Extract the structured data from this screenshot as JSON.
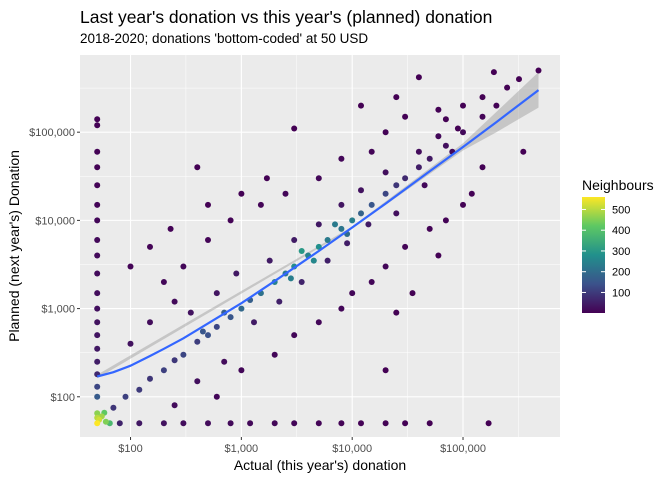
{
  "chart_data": {
    "type": "scatter",
    "title": "Last year's donation vs this year's (planned) donation",
    "subtitle": "2018-2020; donations 'bottom-coded' at 50 USD",
    "xlabel": "Actual (this year's) donation",
    "ylabel": "Planned (next year's) Donation",
    "x_scale": "log10",
    "y_scale": "log10",
    "xlim": [
      35,
      750000
    ],
    "ylim": [
      35,
      750000
    ],
    "x_ticks": [
      {
        "value": 100,
        "label": "$100"
      },
      {
        "value": 1000,
        "label": "$1,000"
      },
      {
        "value": 10000,
        "label": "$10,000"
      },
      {
        "value": 100000,
        "label": "$100,000"
      }
    ],
    "y_ticks": [
      {
        "value": 100,
        "label": "$100"
      },
      {
        "value": 1000,
        "label": "$1,000"
      },
      {
        "value": 10000,
        "label": "$10,000"
      },
      {
        "value": 100000,
        "label": "$100,000"
      }
    ],
    "grid": true,
    "legend": {
      "title": "Neighbours",
      "placement": "right",
      "min": 1,
      "max": 560,
      "ticks": [
        100,
        200,
        300,
        400,
        500
      ],
      "colormap": "viridis"
    },
    "trend": {
      "name": "smoothed fit",
      "color": "#3366FF",
      "points": [
        {
          "x": 50,
          "y": 170
        },
        {
          "x": 70,
          "y": 190
        },
        {
          "x": 100,
          "y": 225
        },
        {
          "x": 150,
          "y": 290
        },
        {
          "x": 200,
          "y": 350
        },
        {
          "x": 300,
          "y": 460
        },
        {
          "x": 500,
          "y": 680
        },
        {
          "x": 1000,
          "y": 1150
        },
        {
          "x": 2000,
          "y": 2050
        },
        {
          "x": 5000,
          "y": 4500
        },
        {
          "x": 10000,
          "y": 8300
        },
        {
          "x": 20000,
          "y": 15500
        },
        {
          "x": 50000,
          "y": 36000
        },
        {
          "x": 100000,
          "y": 68000
        },
        {
          "x": 200000,
          "y": 130000
        },
        {
          "x": 480000,
          "y": 300000
        }
      ],
      "band_upper": [
        {
          "x": 50,
          "y": 178
        },
        {
          "x": 10000,
          "y": 8500
        },
        {
          "x": 100000,
          "y": 75000
        },
        {
          "x": 200000,
          "y": 170000
        },
        {
          "x": 480000,
          "y": 480000
        }
      ],
      "band_lower": [
        {
          "x": 50,
          "y": 162
        },
        {
          "x": 10000,
          "y": 8100
        },
        {
          "x": 100000,
          "y": 62000
        },
        {
          "x": 200000,
          "y": 100000
        },
        {
          "x": 480000,
          "y": 190000
        }
      ]
    },
    "series": [
      {
        "name": "bottom-coded cluster",
        "points": [
          {
            "x": 50,
            "y": 50,
            "n": 560
          },
          {
            "x": 52,
            "y": 55,
            "n": 520
          },
          {
            "x": 55,
            "y": 60,
            "n": 480
          },
          {
            "x": 60,
            "y": 52,
            "n": 450
          },
          {
            "x": 50,
            "y": 58,
            "n": 500
          },
          {
            "x": 58,
            "y": 66,
            "n": 420
          },
          {
            "x": 65,
            "y": 50,
            "n": 380
          },
          {
            "x": 50,
            "y": 65,
            "n": 460
          }
        ]
      },
      {
        "name": "vertical strip at x=50",
        "points": [
          {
            "x": 50,
            "y": 140000,
            "n": 3
          },
          {
            "x": 50,
            "y": 120000,
            "n": 3
          },
          {
            "x": 50,
            "y": 60000,
            "n": 4
          },
          {
            "x": 50,
            "y": 40000,
            "n": 4
          },
          {
            "x": 50,
            "y": 25000,
            "n": 6
          },
          {
            "x": 50,
            "y": 15000,
            "n": 8
          },
          {
            "x": 50,
            "y": 10000,
            "n": 12
          },
          {
            "x": 50,
            "y": 6000,
            "n": 14
          },
          {
            "x": 50,
            "y": 4000,
            "n": 16
          },
          {
            "x": 50,
            "y": 2500,
            "n": 18
          },
          {
            "x": 50,
            "y": 1500,
            "n": 22
          },
          {
            "x": 50,
            "y": 1000,
            "n": 26
          },
          {
            "x": 50,
            "y": 700,
            "n": 30
          },
          {
            "x": 50,
            "y": 500,
            "n": 34
          },
          {
            "x": 50,
            "y": 350,
            "n": 40
          },
          {
            "x": 50,
            "y": 250,
            "n": 50
          },
          {
            "x": 50,
            "y": 180,
            "n": 70
          },
          {
            "x": 50,
            "y": 130,
            "n": 120
          },
          {
            "x": 50,
            "y": 100,
            "n": 160
          }
        ]
      },
      {
        "name": "horizontal strip at y=50",
        "points": [
          {
            "x": 80,
            "y": 50,
            "n": 60
          },
          {
            "x": 120,
            "y": 50,
            "n": 40
          },
          {
            "x": 200,
            "y": 50,
            "n": 30
          },
          {
            "x": 300,
            "y": 50,
            "n": 24
          },
          {
            "x": 500,
            "y": 50,
            "n": 20
          },
          {
            "x": 800,
            "y": 50,
            "n": 16
          },
          {
            "x": 1200,
            "y": 50,
            "n": 14
          },
          {
            "x": 2000,
            "y": 50,
            "n": 12
          },
          {
            "x": 3000,
            "y": 50,
            "n": 10
          },
          {
            "x": 5000,
            "y": 50,
            "n": 8
          },
          {
            "x": 8000,
            "y": 50,
            "n": 6
          },
          {
            "x": 12000,
            "y": 50,
            "n": 5
          },
          {
            "x": 20000,
            "y": 50,
            "n": 4
          },
          {
            "x": 30000,
            "y": 50,
            "n": 3
          },
          {
            "x": 50000,
            "y": 50,
            "n": 2
          },
          {
            "x": 170000,
            "y": 50,
            "n": 1
          }
        ]
      },
      {
        "name": "main diagonal",
        "points": [
          {
            "x": 70,
            "y": 75,
            "n": 90
          },
          {
            "x": 90,
            "y": 100,
            "n": 110
          },
          {
            "x": 120,
            "y": 120,
            "n": 100
          },
          {
            "x": 150,
            "y": 160,
            "n": 90
          },
          {
            "x": 200,
            "y": 200,
            "n": 110
          },
          {
            "x": 250,
            "y": 260,
            "n": 95
          },
          {
            "x": 300,
            "y": 300,
            "n": 120
          },
          {
            "x": 400,
            "y": 420,
            "n": 105
          },
          {
            "x": 500,
            "y": 500,
            "n": 140
          },
          {
            "x": 600,
            "y": 620,
            "n": 120
          },
          {
            "x": 800,
            "y": 800,
            "n": 150
          },
          {
            "x": 1000,
            "y": 1000,
            "n": 190
          },
          {
            "x": 1200,
            "y": 1250,
            "n": 170
          },
          {
            "x": 1500,
            "y": 1500,
            "n": 210
          },
          {
            "x": 2000,
            "y": 2000,
            "n": 250
          },
          {
            "x": 2500,
            "y": 2500,
            "n": 230
          },
          {
            "x": 3000,
            "y": 3000,
            "n": 270
          },
          {
            "x": 4000,
            "y": 4000,
            "n": 250
          },
          {
            "x": 5000,
            "y": 5000,
            "n": 280
          },
          {
            "x": 6000,
            "y": 6000,
            "n": 230
          },
          {
            "x": 8000,
            "y": 8000,
            "n": 220
          },
          {
            "x": 10000,
            "y": 10000,
            "n": 240
          },
          {
            "x": 12000,
            "y": 12000,
            "n": 180
          },
          {
            "x": 15000,
            "y": 15000,
            "n": 150
          },
          {
            "x": 20000,
            "y": 20000,
            "n": 120
          },
          {
            "x": 25000,
            "y": 25000,
            "n": 90
          },
          {
            "x": 30000,
            "y": 30000,
            "n": 70
          },
          {
            "x": 40000,
            "y": 40000,
            "n": 50
          },
          {
            "x": 50000,
            "y": 50000,
            "n": 40
          },
          {
            "x": 70000,
            "y": 70000,
            "n": 25
          },
          {
            "x": 100000,
            "y": 100000,
            "n": 15
          },
          {
            "x": 150000,
            "y": 150000,
            "n": 8
          },
          {
            "x": 200000,
            "y": 200000,
            "n": 5
          }
        ]
      },
      {
        "name": "scattered donors",
        "points": [
          {
            "x": 40000,
            "y": 420000,
            "n": 1
          },
          {
            "x": 190000,
            "y": 480000,
            "n": 1
          },
          {
            "x": 480000,
            "y": 500000,
            "n": 1
          },
          {
            "x": 320000,
            "y": 400000,
            "n": 2
          },
          {
            "x": 250000,
            "y": 320000,
            "n": 2
          },
          {
            "x": 150000,
            "y": 250000,
            "n": 2
          },
          {
            "x": 100000,
            "y": 200000,
            "n": 3
          },
          {
            "x": 70000,
            "y": 140000,
            "n": 2
          },
          {
            "x": 90000,
            "y": 110000,
            "n": 3
          },
          {
            "x": 350000,
            "y": 60000,
            "n": 1
          },
          {
            "x": 3000,
            "y": 110000,
            "n": 1
          },
          {
            "x": 1700,
            "y": 30000,
            "n": 2
          },
          {
            "x": 1000,
            "y": 20000,
            "n": 3
          },
          {
            "x": 500,
            "y": 15000,
            "n": 3
          },
          {
            "x": 400,
            "y": 40000,
            "n": 1
          },
          {
            "x": 230,
            "y": 8000,
            "n": 5
          },
          {
            "x": 150,
            "y": 5000,
            "n": 6
          },
          {
            "x": 100,
            "y": 3000,
            "n": 8
          },
          {
            "x": 200,
            "y": 2000,
            "n": 12
          },
          {
            "x": 300,
            "y": 3000,
            "n": 10
          },
          {
            "x": 500,
            "y": 6000,
            "n": 8
          },
          {
            "x": 800,
            "y": 10000,
            "n": 6
          },
          {
            "x": 1500,
            "y": 15000,
            "n": 8
          },
          {
            "x": 2500,
            "y": 20000,
            "n": 10
          },
          {
            "x": 5000,
            "y": 30000,
            "n": 12
          },
          {
            "x": 8000,
            "y": 50000,
            "n": 10
          },
          {
            "x": 15000,
            "y": 60000,
            "n": 8
          },
          {
            "x": 20000,
            "y": 100000,
            "n": 5
          },
          {
            "x": 30000,
            "y": 150000,
            "n": 3
          },
          {
            "x": 60000,
            "y": 180000,
            "n": 3
          },
          {
            "x": 12000,
            "y": 200000,
            "n": 2
          },
          {
            "x": 25000,
            "y": 250000,
            "n": 1
          },
          {
            "x": 600,
            "y": 100,
            "n": 10
          },
          {
            "x": 1000,
            "y": 200,
            "n": 12
          },
          {
            "x": 2000,
            "y": 300,
            "n": 10
          },
          {
            "x": 3000,
            "y": 500,
            "n": 12
          },
          {
            "x": 5000,
            "y": 700,
            "n": 10
          },
          {
            "x": 8000,
            "y": 1000,
            "n": 10
          },
          {
            "x": 10000,
            "y": 1500,
            "n": 12
          },
          {
            "x": 15000,
            "y": 2000,
            "n": 10
          },
          {
            "x": 20000,
            "y": 3000,
            "n": 10
          },
          {
            "x": 30000,
            "y": 5000,
            "n": 8
          },
          {
            "x": 50000,
            "y": 8000,
            "n": 6
          },
          {
            "x": 70000,
            "y": 10000,
            "n": 5
          },
          {
            "x": 100000,
            "y": 15000,
            "n": 4
          },
          {
            "x": 20000,
            "y": 200,
            "n": 1
          },
          {
            "x": 25000,
            "y": 900,
            "n": 2
          },
          {
            "x": 35000,
            "y": 1500,
            "n": 2
          },
          {
            "x": 60000,
            "y": 4000,
            "n": 3
          },
          {
            "x": 150000,
            "y": 40000,
            "n": 3
          },
          {
            "x": 120000,
            "y": 20000,
            "n": 3
          },
          {
            "x": 250,
            "y": 80,
            "n": 20
          },
          {
            "x": 400,
            "y": 150,
            "n": 25
          },
          {
            "x": 700,
            "y": 250,
            "n": 20
          },
          {
            "x": 100,
            "y": 400,
            "n": 30
          },
          {
            "x": 150,
            "y": 700,
            "n": 20
          },
          {
            "x": 250,
            "y": 1200,
            "n": 16
          },
          {
            "x": 350,
            "y": 900,
            "n": 30
          },
          {
            "x": 600,
            "y": 1500,
            "n": 35
          },
          {
            "x": 900,
            "y": 2500,
            "n": 40
          },
          {
            "x": 1300,
            "y": 700,
            "n": 45
          },
          {
            "x": 2200,
            "y": 1200,
            "n": 55
          },
          {
            "x": 3500,
            "y": 2000,
            "n": 60
          },
          {
            "x": 6000,
            "y": 3500,
            "n": 55
          },
          {
            "x": 9000,
            "y": 5500,
            "n": 50
          },
          {
            "x": 14000,
            "y": 9000,
            "n": 45
          },
          {
            "x": 1800,
            "y": 3500,
            "n": 45
          },
          {
            "x": 3000,
            "y": 6000,
            "n": 45
          },
          {
            "x": 5000,
            "y": 9000,
            "n": 40
          },
          {
            "x": 8000,
            "y": 15000,
            "n": 35
          },
          {
            "x": 12000,
            "y": 22000,
            "n": 30
          },
          {
            "x": 20000,
            "y": 35000,
            "n": 25
          },
          {
            "x": 40000,
            "y": 60000,
            "n": 20
          },
          {
            "x": 60000,
            "y": 90000,
            "n": 15
          },
          {
            "x": 80000,
            "y": 60000,
            "n": 12
          },
          {
            "x": 45000,
            "y": 25000,
            "n": 15
          },
          {
            "x": 25000,
            "y": 12000,
            "n": 25
          },
          {
            "x": 450,
            "y": 550,
            "n": 150
          },
          {
            "x": 700,
            "y": 900,
            "n": 170
          },
          {
            "x": 3500,
            "y": 4500,
            "n": 300
          },
          {
            "x": 4500,
            "y": 3500,
            "n": 260
          },
          {
            "x": 7000,
            "y": 9000,
            "n": 230
          },
          {
            "x": 2800,
            "y": 2200,
            "n": 240
          },
          {
            "x": 9000,
            "y": 7000,
            "n": 200
          }
        ]
      }
    ]
  }
}
